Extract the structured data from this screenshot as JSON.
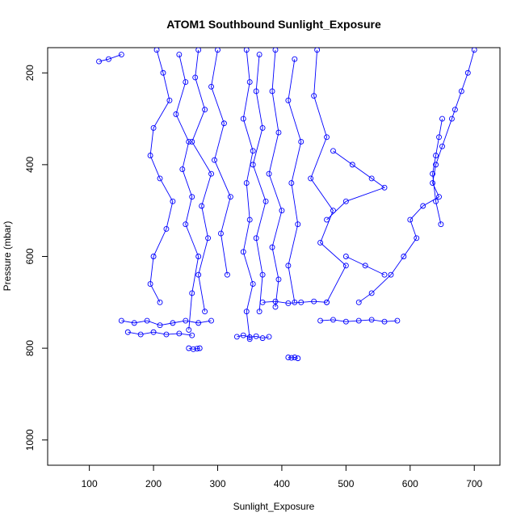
{
  "chart_data": {
    "type": "scatter",
    "title": "ATOM1 Southbound Sunlight_Exposure",
    "xlabel": "Sunlight_Exposure",
    "ylabel": "Pressure (mbar)",
    "xlim": [
      35,
      740
    ],
    "ylim": [
      1055,
      145
    ],
    "y_reversed": true,
    "x_ticks": [
      100,
      200,
      300,
      400,
      500,
      600,
      700
    ],
    "y_ticks": [
      200,
      400,
      600,
      800,
      1000
    ],
    "x_tick_labels": [
      "100",
      "200",
      "300",
      "400",
      "500",
      "600",
      "700"
    ],
    "y_tick_labels": [
      "200",
      "400",
      "600",
      "800",
      "1000"
    ],
    "grid": false,
    "style": "points joined by lines (type='b')",
    "color": "#0000ff",
    "series": [
      {
        "x": [
          205,
          215,
          225,
          200,
          195,
          210,
          230,
          220,
          200,
          195,
          210
        ],
        "y": [
          150,
          200,
          260,
          320,
          380,
          430,
          480,
          540,
          600,
          660,
          700
        ]
      },
      {
        "x": [
          240,
          250,
          235,
          255,
          245,
          260,
          250,
          270,
          260,
          255
        ],
        "y": [
          160,
          220,
          290,
          350,
          410,
          470,
          530,
          600,
          680,
          760
        ]
      },
      {
        "x": [
          270,
          265,
          280,
          260,
          290,
          275,
          285,
          270,
          280
        ],
        "y": [
          150,
          210,
          280,
          350,
          420,
          490,
          560,
          640,
          720
        ]
      },
      {
        "x": [
          300,
          290,
          310,
          295,
          320,
          305,
          315
        ],
        "y": [
          150,
          230,
          310,
          390,
          470,
          550,
          640
        ]
      },
      {
        "x": [
          345,
          350,
          340,
          355,
          345,
          350,
          340,
          355,
          345,
          350
        ],
        "y": [
          150,
          220,
          300,
          370,
          440,
          520,
          590,
          660,
          720,
          780
        ]
      },
      {
        "x": [
          365,
          360,
          370,
          355,
          375,
          360,
          370,
          365
        ],
        "y": [
          160,
          240,
          320,
          400,
          480,
          560,
          640,
          720
        ]
      },
      {
        "x": [
          390,
          385,
          395,
          380,
          400,
          385,
          395,
          390
        ],
        "y": [
          150,
          240,
          330,
          420,
          500,
          580,
          650,
          710
        ]
      },
      {
        "x": [
          420,
          410,
          430,
          415,
          425,
          410,
          420
        ],
        "y": [
          170,
          260,
          350,
          440,
          530,
          620,
          700
        ]
      },
      {
        "x": [
          455,
          450,
          470,
          445,
          480,
          460,
          500,
          470
        ],
        "y": [
          150,
          250,
          340,
          430,
          500,
          570,
          620,
          700
        ]
      },
      {
        "x": [
          150,
          170,
          190,
          210,
          230,
          250,
          270,
          290
        ],
        "y": [
          740,
          745,
          740,
          750,
          745,
          740,
          745,
          740
        ]
      },
      {
        "x": [
          160,
          180,
          200,
          220,
          240,
          260
        ],
        "y": [
          765,
          770,
          765,
          770,
          768,
          772
        ]
      },
      {
        "x": [
          255,
          262,
          268,
          272
        ],
        "y": [
          800,
          802,
          801,
          800
        ]
      },
      {
        "x": [
          330,
          340,
          350,
          360,
          370,
          380
        ],
        "y": [
          775,
          772,
          776,
          774,
          778,
          775
        ]
      },
      {
        "x": [
          370,
          390,
          410,
          430,
          450,
          470
        ],
        "y": [
          700,
          698,
          702,
          700,
          698,
          700
        ]
      },
      {
        "x": [
          460,
          480,
          500,
          520,
          540,
          560,
          580
        ],
        "y": [
          740,
          738,
          742,
          740,
          738,
          742,
          740
        ]
      },
      {
        "x": [
          410,
          415,
          420,
          425
        ],
        "y": [
          820,
          821,
          820,
          822
        ]
      },
      {
        "x": [
          700,
          690,
          680,
          670,
          665,
          650,
          640,
          635,
          645,
          620,
          600,
          610,
          590,
          570,
          540,
          520
        ],
        "y": [
          150,
          200,
          240,
          280,
          300,
          360,
          400,
          440,
          470,
          490,
          520,
          560,
          600,
          640,
          680,
          700
        ]
      },
      {
        "x": [
          650,
          645,
          640,
          635,
          640,
          648
        ],
        "y": [
          300,
          340,
          380,
          420,
          480,
          530
        ]
      },
      {
        "x": [
          480,
          510,
          540,
          560,
          500,
          470
        ],
        "y": [
          370,
          400,
          430,
          450,
          480,
          520
        ]
      },
      {
        "x": [
          500,
          530,
          560
        ],
        "y": [
          600,
          620,
          640
        ]
      },
      {
        "x": [
          115,
          130,
          150
        ],
        "y": [
          175,
          170,
          160
        ]
      }
    ]
  }
}
